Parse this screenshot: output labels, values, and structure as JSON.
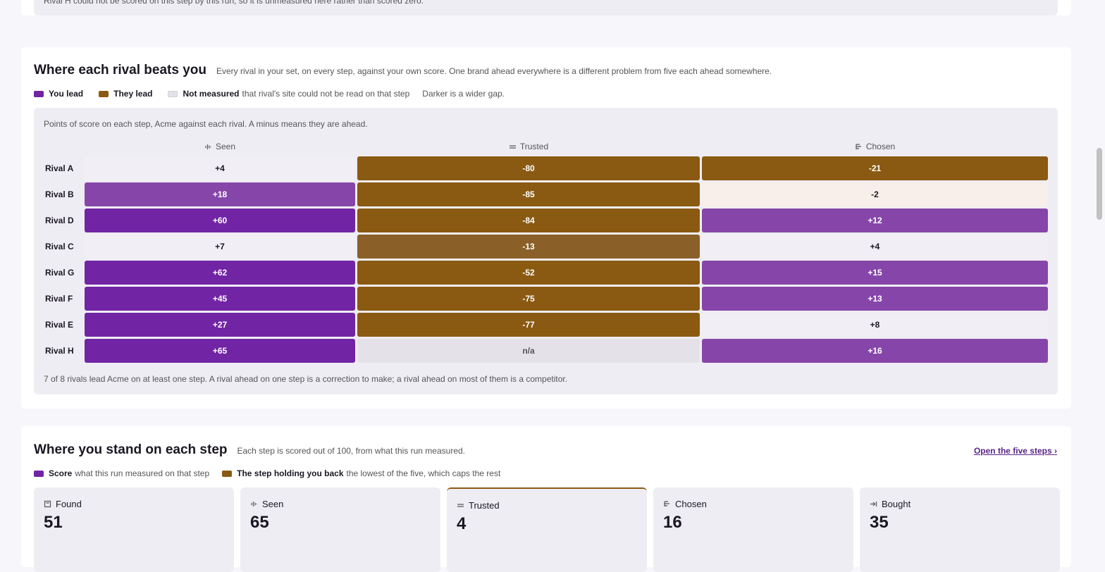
{
  "top_note": "Rival H could not be scored on this step by this run, so it is unmeasured here rather than scored zero.",
  "rivals_section": {
    "title": "Where each rival beats you",
    "subtitle": "Every rival in your set, on every step, against your own score. One brand ahead everywhere is a different problem from five each ahead somewhere.",
    "legend": [
      {
        "label": "You lead"
      },
      {
        "label": "They lead"
      },
      {
        "label": "Not measured",
        "note": "that rival's site could not be read on that step"
      }
    ],
    "legend_hint": "Darker is a wider gap.",
    "caption": "Points of score on each step, Acme against each rival. A minus means they are ahead.",
    "columns": [
      "Seen",
      "Trusted",
      "Chosen"
    ],
    "rows": [
      {
        "name": "Rival A",
        "cells": [
          "+4",
          "-80",
          "-21"
        ]
      },
      {
        "name": "Rival B",
        "cells": [
          "+18",
          "-85",
          "-2"
        ]
      },
      {
        "name": "Rival D",
        "cells": [
          "+60",
          "-84",
          "+12"
        ]
      },
      {
        "name": "Rival C",
        "cells": [
          "+7",
          "-13",
          "+4"
        ]
      },
      {
        "name": "Rival G",
        "cells": [
          "+62",
          "-52",
          "+15"
        ]
      },
      {
        "name": "Rival F",
        "cells": [
          "+45",
          "-75",
          "+13"
        ]
      },
      {
        "name": "Rival E",
        "cells": [
          "+27",
          "-77",
          "+8"
        ]
      },
      {
        "name": "Rival H",
        "cells": [
          "+65",
          "n/a",
          "+16"
        ]
      }
    ],
    "footnote": "7 of 8 rivals lead Acme on at least one step. A rival ahead on one step is a correction to make; a rival ahead on most of them is a competitor."
  },
  "steps_section": {
    "title": "Where you stand on each step",
    "subtitle": "Each step is scored out of 100, from what this run measured.",
    "link": "Open the five steps",
    "legend": [
      {
        "label": "Score",
        "note": "what this run measured on that step"
      },
      {
        "label": "The step holding you back",
        "note": "the lowest of the five, which caps the rest"
      }
    ],
    "cards": [
      {
        "name": "Found",
        "score": 51
      },
      {
        "name": "Seen",
        "score": 65
      },
      {
        "name": "Trusted",
        "score": 4
      },
      {
        "name": "Chosen",
        "score": 16
      },
      {
        "name": "Bought",
        "score": 35
      }
    ]
  }
}
